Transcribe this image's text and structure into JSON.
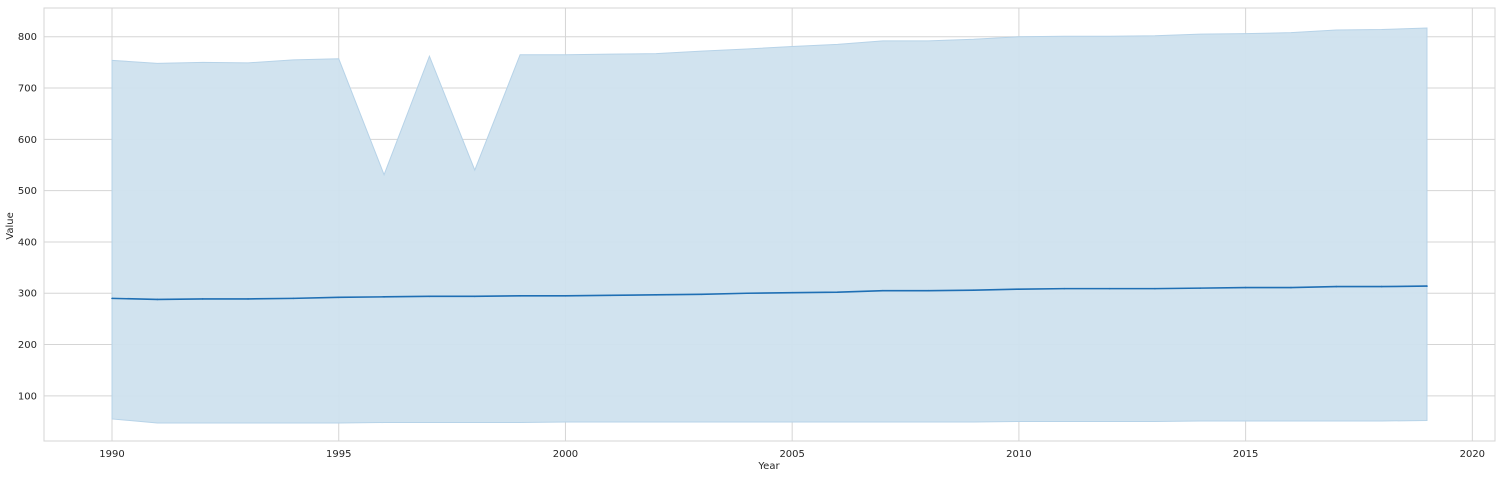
{
  "chart_data": {
    "type": "line",
    "title": "",
    "xlabel": "Year",
    "ylabel": "Value",
    "xlim": [
      1988.5,
      2020.5
    ],
    "ylim": [
      12,
      856
    ],
    "xticks": [
      1990,
      1995,
      2000,
      2005,
      2010,
      2015,
      2020
    ],
    "yticks": [
      100,
      200,
      300,
      400,
      500,
      600,
      700,
      800
    ],
    "grid": true,
    "colors": {
      "line": "#1f6fb4",
      "band_fill": "#cfe1ee",
      "band_edge": "#b7d3e8",
      "grid": "#d5d5d5",
      "background": "#ffffff",
      "text": "#262626"
    },
    "x": [
      1990,
      1991,
      1992,
      1993,
      1994,
      1995,
      1996,
      1997,
      1998,
      1999,
      2000,
      2001,
      2002,
      2003,
      2004,
      2005,
      2006,
      2007,
      2008,
      2009,
      2010,
      2011,
      2012,
      2013,
      2014,
      2015,
      2016,
      2017,
      2018,
      2019
    ],
    "series": [
      {
        "values": [
          290,
          288,
          289,
          289,
          290,
          292,
          293,
          294,
          294,
          295,
          295,
          296,
          297,
          298,
          300,
          301,
          302,
          305,
          305,
          306,
          308,
          309,
          309,
          309,
          310,
          311,
          311,
          313,
          313,
          314
        ],
        "band_upper": [
          754,
          748,
          750,
          749,
          755,
          757,
          531,
          762,
          540,
          765,
          765,
          766,
          767,
          772,
          776,
          781,
          785,
          792,
          792,
          795,
          800,
          801,
          801,
          802,
          805,
          806,
          808,
          813,
          814,
          817
        ],
        "band_lower": [
          55,
          47,
          47,
          47,
          47,
          47,
          48,
          48,
          48,
          48,
          49,
          49,
          49,
          49,
          49,
          49,
          49,
          49,
          49,
          49,
          50,
          50,
          50,
          50,
          51,
          51,
          51,
          51,
          51,
          52
        ]
      }
    ]
  }
}
